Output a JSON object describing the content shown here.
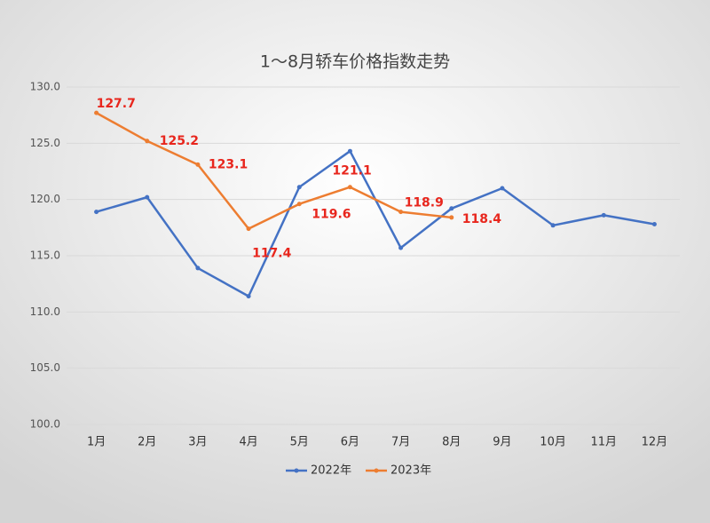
{
  "chart_data": {
    "type": "line",
    "title": "1～8月轿车价格指数走势",
    "categories": [
      "1月",
      "2月",
      "3月",
      "4月",
      "5月",
      "6月",
      "7月",
      "8月",
      "9月",
      "10月",
      "11月",
      "12月"
    ],
    "series": [
      {
        "name": "2022年",
        "color": "#4472c4",
        "values": [
          118.9,
          120.2,
          113.9,
          111.4,
          121.1,
          124.3,
          115.7,
          119.2,
          121.0,
          117.7,
          118.6,
          117.8
        ]
      },
      {
        "name": "2023年",
        "color": "#ed7d31",
        "values": [
          127.7,
          125.2,
          123.1,
          117.4,
          119.6,
          121.1,
          118.9,
          118.4,
          null,
          null,
          null,
          null
        ],
        "data_labels": true,
        "label_color": "#e8261d"
      }
    ],
    "ylim": [
      100,
      130
    ],
    "yticks": [
      {
        "value": 100,
        "label": "100.0"
      },
      {
        "value": 105,
        "label": "105.0"
      },
      {
        "value": 110,
        "label": "110.0"
      },
      {
        "value": 115,
        "label": "115.0"
      },
      {
        "value": 120,
        "label": "120.0"
      },
      {
        "value": 125,
        "label": "125.0"
      },
      {
        "value": 130,
        "label": "130.0"
      }
    ],
    "grid": true,
    "legend": "bottom"
  }
}
